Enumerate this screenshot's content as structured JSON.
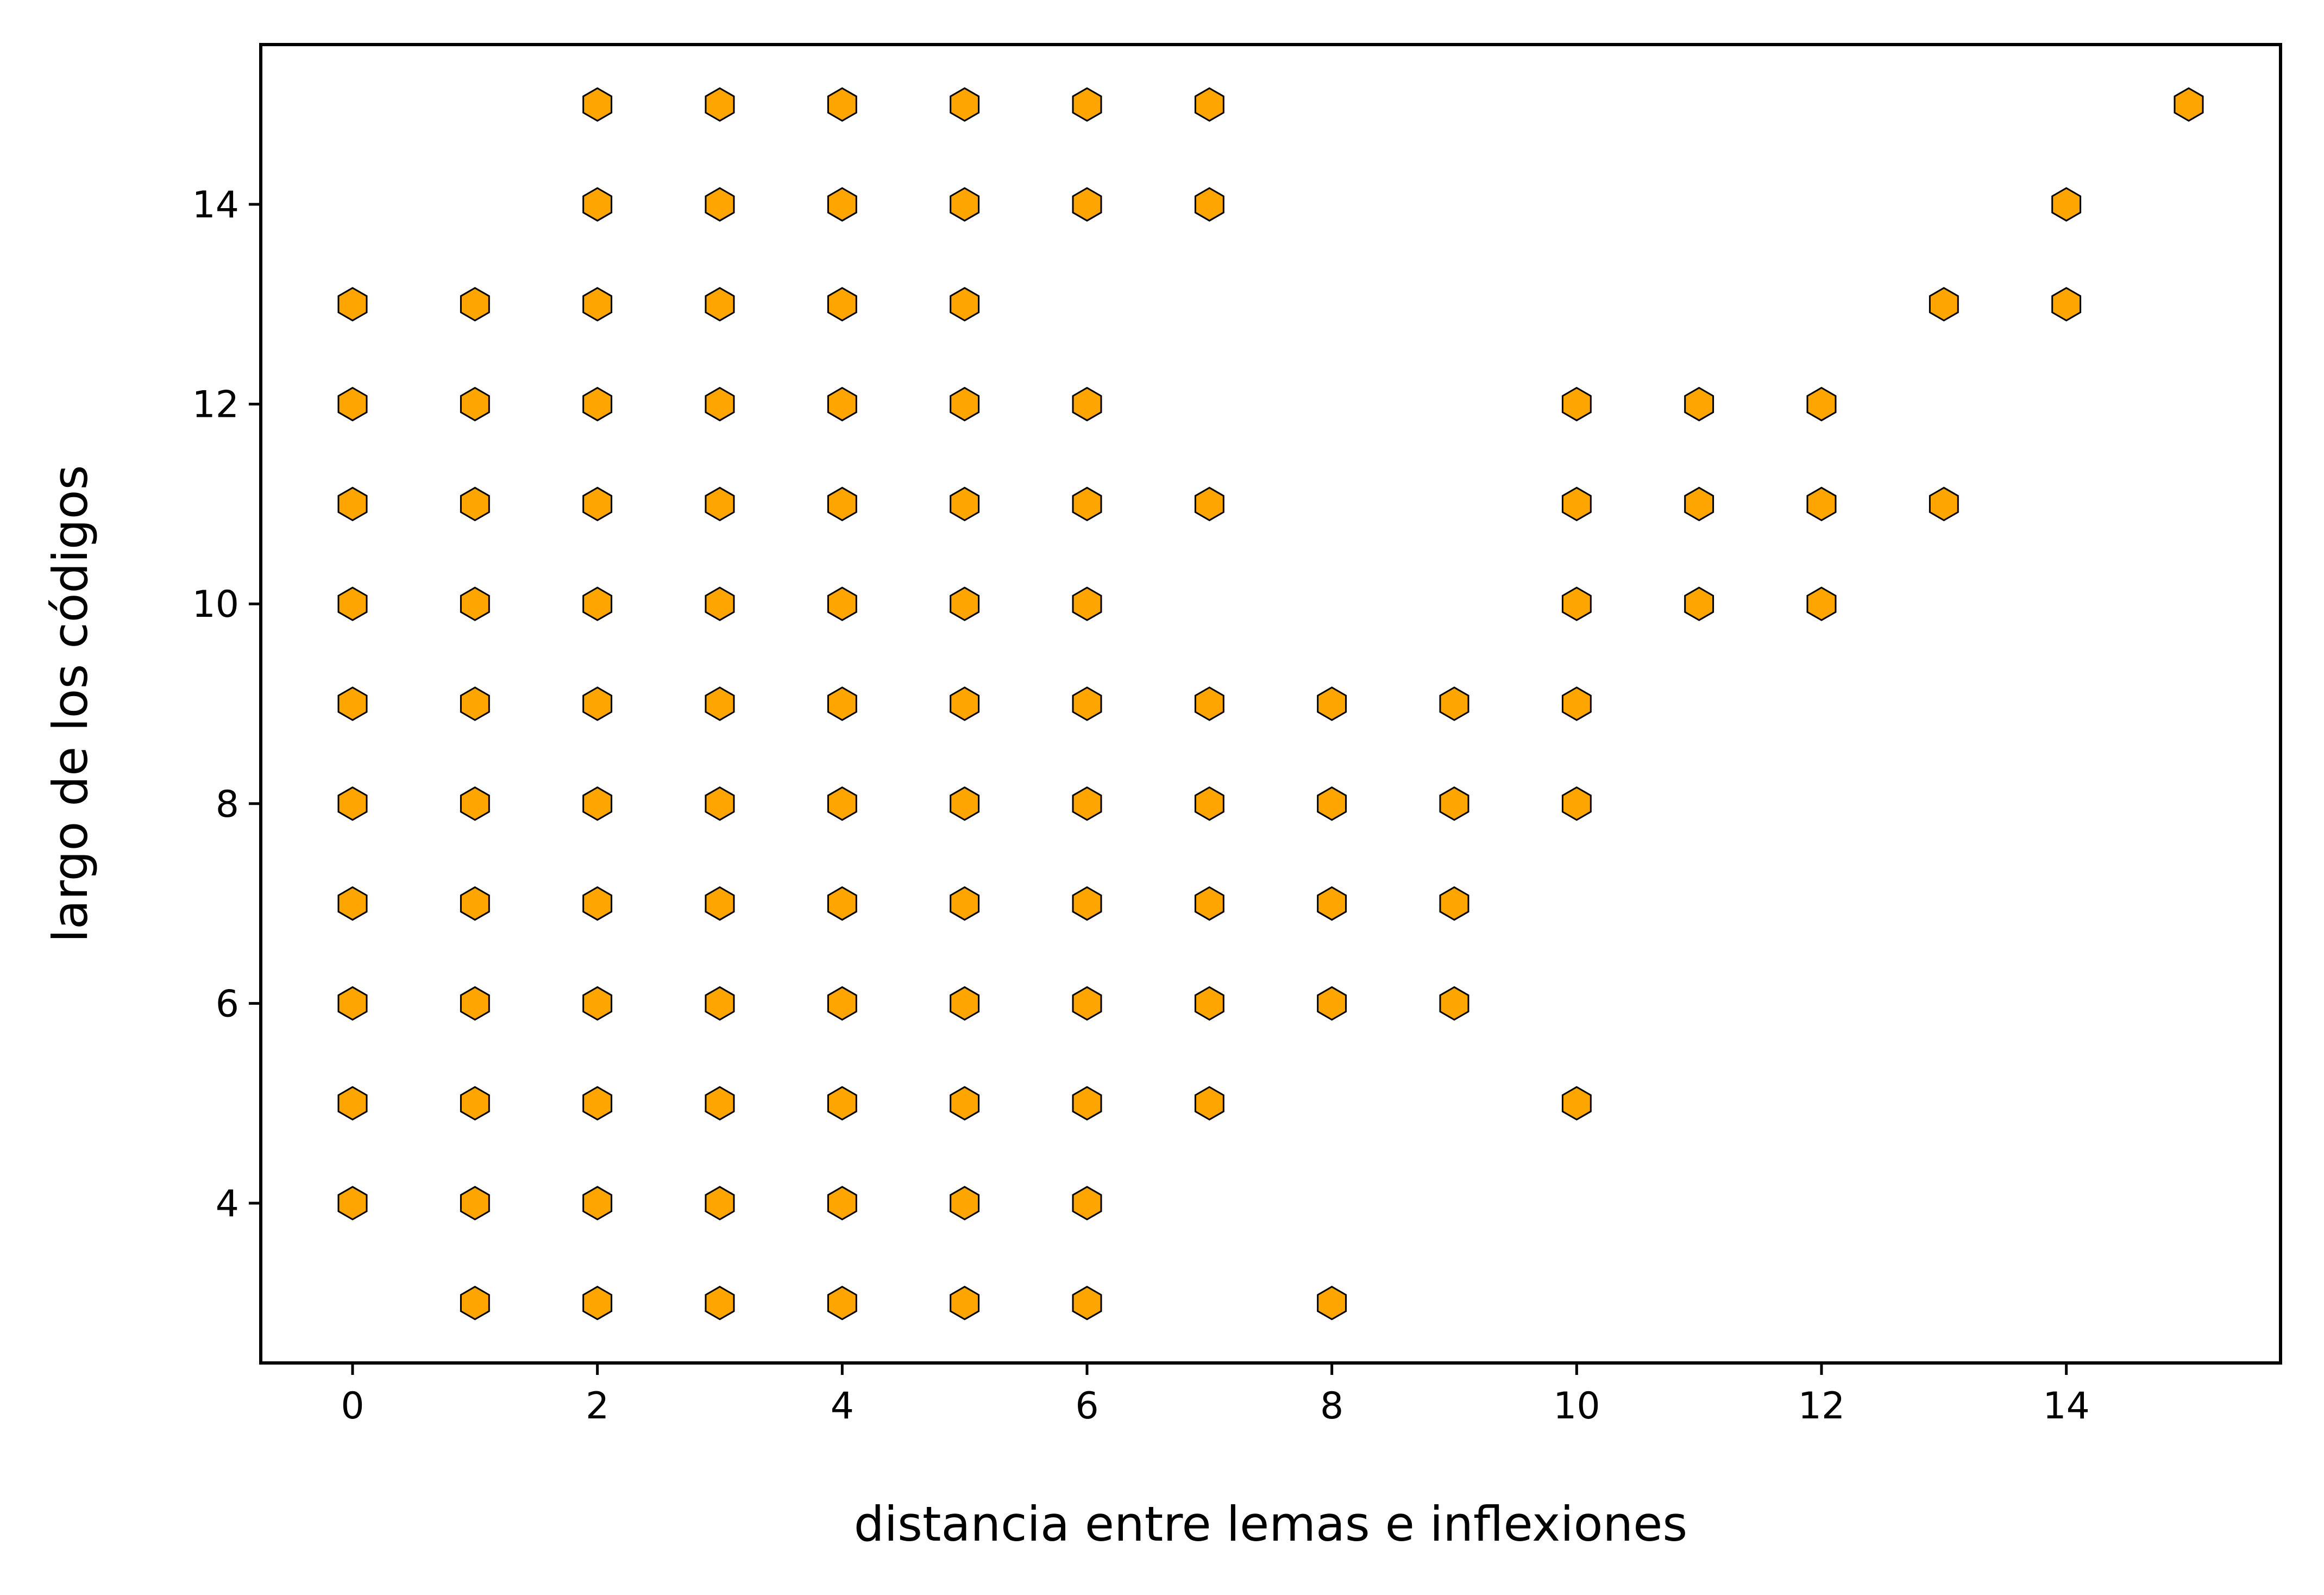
{
  "chart_data": {
    "type": "scatter",
    "xlabel": "distancia entre lemas e inflexiones",
    "ylabel": "largo de los códigos",
    "xlim": [
      -0.75,
      15.75
    ],
    "ylim": [
      2.4,
      15.6
    ],
    "xticks": [
      0,
      2,
      4,
      6,
      8,
      10,
      12,
      14
    ],
    "yticks": [
      4,
      6,
      8,
      10,
      12,
      14
    ],
    "grid": false,
    "legend": "none",
    "marker": "hexagon",
    "colors": {
      "marker_fill": "#ffa500",
      "marker_edge": "#000000",
      "axes": "#000000"
    },
    "series": [
      {
        "points": [
          [
            0,
            4
          ],
          [
            0,
            5
          ],
          [
            0,
            6
          ],
          [
            0,
            7
          ],
          [
            0,
            8
          ],
          [
            0,
            9
          ],
          [
            0,
            10
          ],
          [
            0,
            11
          ],
          [
            0,
            12
          ],
          [
            0,
            13
          ],
          [
            1,
            3
          ],
          [
            1,
            4
          ],
          [
            1,
            5
          ],
          [
            1,
            6
          ],
          [
            1,
            7
          ],
          [
            1,
            8
          ],
          [
            1,
            9
          ],
          [
            1,
            10
          ],
          [
            1,
            11
          ],
          [
            1,
            12
          ],
          [
            1,
            13
          ],
          [
            2,
            3
          ],
          [
            2,
            4
          ],
          [
            2,
            5
          ],
          [
            2,
            6
          ],
          [
            2,
            7
          ],
          [
            2,
            8
          ],
          [
            2,
            9
          ],
          [
            2,
            10
          ],
          [
            2,
            11
          ],
          [
            2,
            12
          ],
          [
            2,
            13
          ],
          [
            2,
            14
          ],
          [
            2,
            15
          ],
          [
            3,
            3
          ],
          [
            3,
            4
          ],
          [
            3,
            5
          ],
          [
            3,
            6
          ],
          [
            3,
            7
          ],
          [
            3,
            8
          ],
          [
            3,
            9
          ],
          [
            3,
            10
          ],
          [
            3,
            11
          ],
          [
            3,
            12
          ],
          [
            3,
            13
          ],
          [
            3,
            14
          ],
          [
            3,
            15
          ],
          [
            4,
            3
          ],
          [
            4,
            4
          ],
          [
            4,
            5
          ],
          [
            4,
            6
          ],
          [
            4,
            7
          ],
          [
            4,
            8
          ],
          [
            4,
            9
          ],
          [
            4,
            10
          ],
          [
            4,
            11
          ],
          [
            4,
            12
          ],
          [
            4,
            13
          ],
          [
            4,
            14
          ],
          [
            4,
            15
          ],
          [
            5,
            3
          ],
          [
            5,
            4
          ],
          [
            5,
            5
          ],
          [
            5,
            6
          ],
          [
            5,
            7
          ],
          [
            5,
            8
          ],
          [
            5,
            9
          ],
          [
            5,
            10
          ],
          [
            5,
            11
          ],
          [
            5,
            12
          ],
          [
            5,
            13
          ],
          [
            5,
            14
          ],
          [
            5,
            15
          ],
          [
            6,
            3
          ],
          [
            6,
            4
          ],
          [
            6,
            5
          ],
          [
            6,
            6
          ],
          [
            6,
            7
          ],
          [
            6,
            8
          ],
          [
            6,
            9
          ],
          [
            6,
            10
          ],
          [
            6,
            11
          ],
          [
            6,
            12
          ],
          [
            6,
            14
          ],
          [
            6,
            15
          ],
          [
            7,
            5
          ],
          [
            7,
            6
          ],
          [
            7,
            7
          ],
          [
            7,
            8
          ],
          [
            7,
            9
          ],
          [
            7,
            11
          ],
          [
            7,
            14
          ],
          [
            7,
            15
          ],
          [
            8,
            3
          ],
          [
            8,
            6
          ],
          [
            8,
            7
          ],
          [
            8,
            8
          ],
          [
            8,
            9
          ],
          [
            9,
            6
          ],
          [
            9,
            7
          ],
          [
            9,
            8
          ],
          [
            9,
            9
          ],
          [
            10,
            5
          ],
          [
            10,
            8
          ],
          [
            10,
            9
          ],
          [
            10,
            10
          ],
          [
            10,
            11
          ],
          [
            10,
            12
          ],
          [
            11,
            10
          ],
          [
            11,
            11
          ],
          [
            11,
            12
          ],
          [
            12,
            10
          ],
          [
            12,
            11
          ],
          [
            12,
            12
          ],
          [
            13,
            11
          ],
          [
            13,
            13
          ],
          [
            14,
            13
          ],
          [
            14,
            14
          ],
          [
            15,
            15
          ]
        ]
      }
    ]
  }
}
